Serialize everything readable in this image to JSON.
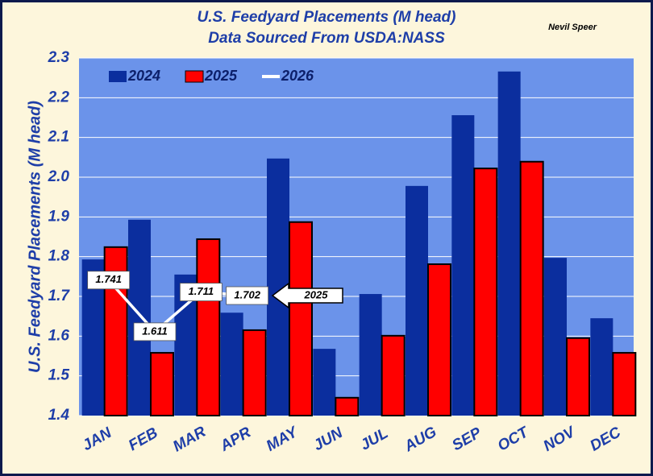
{
  "chart_data": {
    "type": "bar",
    "title": "U.S. Feedyard Placements (M head)",
    "subtitle": "Data Sourced From USDA:NASS",
    "author": "Nevil Speer",
    "y_label": "U.S. Feedyard Placements (M head)",
    "annotation": "2025",
    "categories": [
      "JAN",
      "FEB",
      "MAR",
      "APR",
      "MAY",
      "JUN",
      "JUL",
      "AUG",
      "SEP",
      "OCT",
      "NOV",
      "DEC"
    ],
    "series": [
      {
        "name": "2024",
        "color": "#0b2e9e",
        "values": [
          1.793,
          1.893,
          1.755,
          1.659,
          2.047,
          1.568,
          1.706,
          1.978,
          2.156,
          2.266,
          1.797,
          1.645
        ]
      },
      {
        "name": "2025",
        "color": "#ff0000",
        "values": [
          1.824,
          1.558,
          1.844,
          1.615,
          1.887,
          1.445,
          1.601,
          1.781,
          2.022,
          2.039,
          1.595,
          1.558
        ]
      },
      {
        "name": "2026",
        "color": "#ffffff",
        "type": "line",
        "values": [
          1.741,
          1.611,
          1.711,
          1.702,
          null,
          null,
          null,
          null,
          null,
          null,
          null,
          null
        ]
      }
    ],
    "ylim": [
      1.4,
      2.3
    ],
    "yticks": [
      1.4,
      1.5,
      1.6,
      1.7,
      1.8,
      1.9,
      {
        "value": 2,
        "label": "2.0"
      },
      2.1,
      2.2,
      2.3
    ],
    "grid": true
  }
}
